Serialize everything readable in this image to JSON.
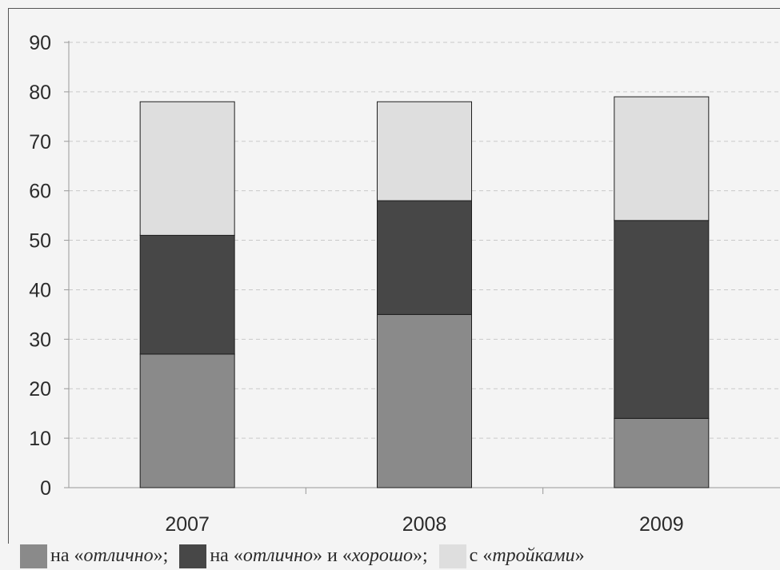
{
  "chart_data": {
    "type": "bar",
    "stacked": true,
    "categories": [
      "2007",
      "2008",
      "2009"
    ],
    "series": [
      {
        "name": "на «отлично»;",
        "values": [
          27,
          35,
          14
        ],
        "color": "#8a8a8a"
      },
      {
        "name": "на «отлично» и «хорошо»;",
        "values": [
          24,
          23,
          40
        ],
        "color": "#474747"
      },
      {
        "name": "с «тройками»",
        "values": [
          27,
          20,
          25
        ],
        "color": "#dedede"
      }
    ],
    "y_ticks": [
      "0",
      "10",
      "20",
      "30",
      "40",
      "50",
      "60",
      "70",
      "80",
      "90"
    ],
    "ylim": [
      0,
      90
    ],
    "grid": true,
    "legend_position": "bottom",
    "title": "",
    "xlabel": "",
    "ylabel": ""
  },
  "legend": [
    {
      "prefix": "на «",
      "emph": "отлично",
      "suffix": "»;",
      "color": "#8a8a8a"
    },
    {
      "prefix": "на «",
      "emph": "отлично",
      "middle": "» и «",
      "emph2": "хорошо",
      "suffix": "»;",
      "color": "#474747"
    },
    {
      "prefix": "с «",
      "emph": "тройками",
      "suffix": "»",
      "color": "#dedede"
    }
  ]
}
